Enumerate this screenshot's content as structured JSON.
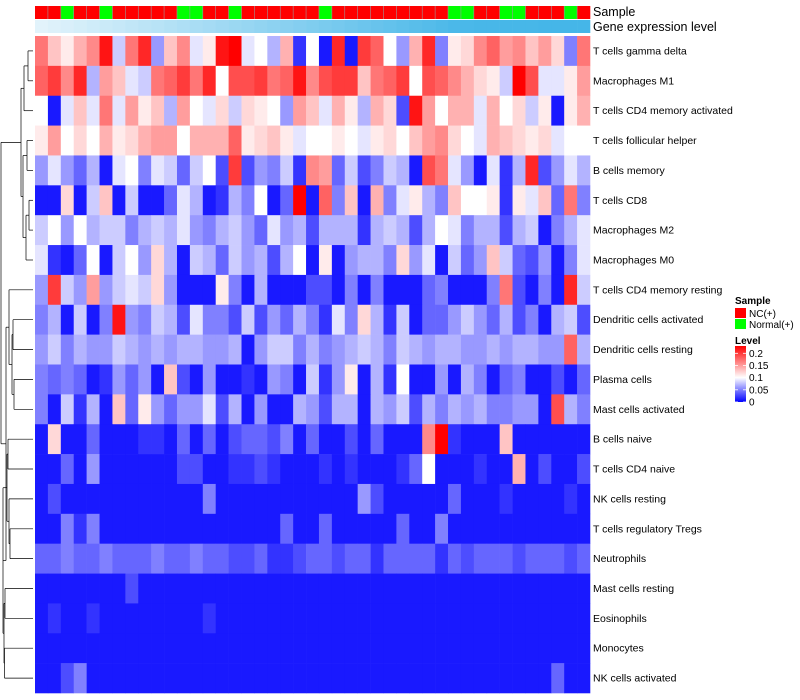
{
  "chart_data": {
    "type": "heatmap",
    "annotation_labels": {
      "sample": "Sample",
      "gene_expression": "Gene expression level"
    },
    "rows": [
      "T cells gamma delta",
      "Macrophages M1",
      "T cells CD4 memory activated",
      "T cells follicular helper",
      "B cells memory",
      "T cells CD8",
      "Macrophages M2",
      "Macrophages M0",
      "T cells CD4 memory resting",
      "Dendritic cells activated",
      "Dendritic cells resting",
      "Plasma cells",
      "Mast cells activated",
      "B cells naive",
      "T cells CD4 naive",
      "NK cells resting",
      "T cells regulatory  Tregs",
      "Neutrophils",
      "Mast cells resting",
      "Eosinophils",
      "Monocytes",
      "NK cells activated"
    ],
    "sample_groups": [
      "NC",
      "NC",
      "Normal",
      "NC",
      "NC",
      "Normal",
      "NC",
      "NC",
      "NC",
      "NC",
      "NC",
      "Normal",
      "Normal",
      "NC",
      "NC",
      "Normal",
      "NC",
      "NC",
      "NC",
      "NC",
      "NC",
      "NC",
      "Normal",
      "NC",
      "NC",
      "NC",
      "NC",
      "NC",
      "NC",
      "NC",
      "NC",
      "NC",
      "Normal",
      "Normal",
      "NC",
      "NC",
      "Normal",
      "Normal",
      "NC",
      "NC",
      "NC",
      "Normal",
      "NC"
    ],
    "gene_expression_gradient": [
      0.0,
      0.03,
      0.06,
      0.09,
      0.12,
      0.15,
      0.18,
      0.21,
      0.24,
      0.27,
      0.3,
      0.33,
      0.36,
      0.39,
      0.42,
      0.45,
      0.48,
      0.51,
      0.54,
      0.57,
      0.6,
      0.63,
      0.66,
      0.69,
      0.72,
      0.75,
      0.78,
      0.81,
      0.84,
      0.87,
      0.9,
      0.93,
      0.96,
      0.97,
      0.98,
      0.98,
      0.99,
      0.99,
      0.99,
      1.0,
      1.0,
      1.0,
      1.0
    ],
    "values": [
      [
        0.17,
        0.13,
        0.11,
        0.14,
        0.16,
        0.22,
        0.08,
        0.17,
        0.21,
        0.06,
        0.13,
        0.16,
        0.09,
        0.11,
        0.22,
        0.25,
        0.09,
        0.1,
        0.07,
        0.14,
        0.02,
        0.1,
        0.01,
        0.21,
        0.01,
        0.2,
        0.18,
        0.1,
        0.06,
        0.14,
        0.21,
        0.05,
        0.11,
        0.12,
        0.16,
        0.18,
        0.15,
        0.16,
        0.13,
        0.15,
        0.12,
        0.05,
        0.17
      ],
      [
        0.18,
        0.2,
        0.16,
        0.21,
        0.07,
        0.15,
        0.13,
        0.09,
        0.08,
        0.17,
        0.18,
        0.2,
        0.17,
        0.21,
        0.1,
        0.19,
        0.19,
        0.2,
        0.17,
        0.18,
        0.22,
        0.16,
        0.19,
        0.2,
        0.2,
        0.13,
        0.17,
        0.18,
        0.2,
        0.1,
        0.19,
        0.18,
        0.16,
        0.14,
        0.12,
        0.11,
        0.08,
        0.23,
        0.19,
        0.09,
        0.09,
        0.11,
        0.15
      ],
      [
        0.1,
        0.01,
        0.09,
        0.13,
        0.09,
        0.17,
        0.09,
        0.15,
        0.11,
        0.13,
        0.07,
        0.15,
        0.1,
        0.09,
        0.12,
        0.08,
        0.12,
        0.11,
        0.1,
        0.06,
        0.15,
        0.13,
        0.09,
        0.14,
        0.11,
        0.07,
        0.14,
        0.12,
        0.03,
        0.22,
        0.15,
        0.1,
        0.14,
        0.14,
        0.09,
        0.14,
        0.1,
        0.12,
        0.08,
        0.11,
        0.01,
        0.11,
        0.14
      ],
      [
        0.11,
        0.15,
        0.1,
        0.12,
        0.1,
        0.14,
        0.11,
        0.12,
        0.14,
        0.15,
        0.15,
        0.1,
        0.14,
        0.14,
        0.14,
        0.18,
        0.11,
        0.12,
        0.13,
        0.11,
        0.09,
        0.1,
        0.1,
        0.11,
        0.1,
        0.09,
        0.11,
        0.12,
        0.1,
        0.13,
        0.15,
        0.16,
        0.12,
        0.1,
        0.09,
        0.14,
        0.13,
        0.12,
        0.11,
        0.12,
        0.09,
        0.1,
        0.1
      ],
      [
        0.06,
        0.09,
        0.06,
        0.04,
        0.07,
        0.01,
        0.09,
        0.1,
        0.05,
        0.09,
        0.08,
        0.04,
        0.08,
        0.1,
        0.03,
        0.2,
        0.03,
        0.06,
        0.05,
        0.08,
        0.02,
        0.16,
        0.15,
        0.04,
        0.08,
        0.03,
        0.05,
        0.08,
        0.07,
        0.01,
        0.19,
        0.17,
        0.09,
        0.06,
        0.01,
        0.09,
        0.02,
        0.07,
        0.21,
        0.03,
        0.06,
        0.09,
        0.07
      ],
      [
        0.01,
        0.01,
        0.12,
        0.01,
        0.08,
        0.13,
        0.01,
        0.08,
        0.01,
        0.01,
        0.04,
        0.09,
        0.07,
        0.01,
        0.02,
        0.07,
        0.05,
        0.1,
        0.01,
        0.04,
        0.23,
        0.01,
        0.18,
        0.05,
        0.13,
        0.01,
        0.14,
        0.05,
        0.09,
        0.11,
        0.07,
        0.05,
        0.13,
        0.1,
        0.1,
        0.11,
        0.02,
        0.11,
        0.09,
        0.13,
        0.04,
        0.17,
        0.05
      ],
      [
        0.08,
        0.1,
        0.06,
        0.1,
        0.07,
        0.08,
        0.08,
        0.05,
        0.07,
        0.08,
        0.07,
        0.09,
        0.06,
        0.05,
        0.07,
        0.08,
        0.06,
        0.04,
        0.09,
        0.06,
        0.07,
        0.03,
        0.07,
        0.07,
        0.07,
        0.02,
        0.07,
        0.08,
        0.07,
        0.03,
        0.07,
        0.1,
        0.09,
        0.05,
        0.07,
        0.07,
        0.03,
        0.07,
        0.08,
        0.01,
        0.05,
        0.07,
        0.09
      ],
      [
        0.09,
        0.02,
        0.01,
        0.04,
        0.1,
        0.01,
        0.08,
        0.1,
        0.06,
        0.12,
        0.07,
        0.01,
        0.08,
        0.07,
        0.04,
        0.08,
        0.06,
        0.07,
        0.03,
        0.07,
        0.1,
        0.01,
        0.11,
        0.01,
        0.06,
        0.07,
        0.07,
        0.05,
        0.12,
        0.06,
        0.09,
        0.01,
        0.08,
        0.04,
        0.06,
        0.13,
        0.08,
        0.04,
        0.03,
        0.06,
        0.01,
        0.05,
        0.09
      ],
      [
        0.06,
        0.2,
        0.08,
        0.06,
        0.15,
        0.06,
        0.08,
        0.09,
        0.08,
        0.12,
        0.06,
        0.01,
        0.01,
        0.01,
        0.11,
        0.05,
        0.01,
        0.07,
        0.01,
        0.01,
        0.01,
        0.03,
        0.03,
        0.01,
        0.05,
        0.01,
        0.05,
        0.01,
        0.01,
        0.01,
        0.04,
        0.05,
        0.01,
        0.01,
        0.01,
        0.05,
        0.17,
        0.03,
        0.01,
        0.05,
        0.01,
        0.21,
        0.08
      ],
      [
        0.05,
        0.07,
        0.01,
        0.08,
        0.01,
        0.05,
        0.22,
        0.06,
        0.05,
        0.08,
        0.07,
        0.03,
        0.09,
        0.05,
        0.05,
        0.03,
        0.08,
        0.03,
        0.06,
        0.04,
        0.07,
        0.05,
        0.02,
        0.09,
        0.05,
        0.12,
        0.07,
        0.02,
        0.08,
        0.01,
        0.04,
        0.04,
        0.06,
        0.08,
        0.06,
        0.04,
        0.07,
        0.03,
        0.05,
        0.01,
        0.07,
        0.08,
        0.03
      ],
      [
        0.06,
        0.08,
        0.05,
        0.07,
        0.06,
        0.06,
        0.08,
        0.07,
        0.06,
        0.07,
        0.06,
        0.07,
        0.07,
        0.06,
        0.06,
        0.07,
        0.01,
        0.06,
        0.08,
        0.08,
        0.05,
        0.07,
        0.05,
        0.06,
        0.07,
        0.08,
        0.07,
        0.05,
        0.08,
        0.07,
        0.06,
        0.07,
        0.07,
        0.06,
        0.06,
        0.07,
        0.06,
        0.07,
        0.07,
        0.06,
        0.06,
        0.18,
        0.07
      ],
      [
        0.05,
        0.04,
        0.05,
        0.04,
        0.01,
        0.02,
        0.06,
        0.04,
        0.06,
        0.01,
        0.13,
        0.03,
        0.01,
        0.06,
        0.01,
        0.01,
        0.02,
        0.01,
        0.06,
        0.05,
        0.01,
        0.08,
        0.02,
        0.06,
        0.11,
        0.01,
        0.07,
        0.02,
        0.1,
        0.01,
        0.01,
        0.06,
        0.01,
        0.07,
        0.05,
        0.01,
        0.04,
        0.05,
        0.01,
        0.01,
        0.03,
        0.01,
        0.04
      ],
      [
        0.05,
        0.01,
        0.08,
        0.02,
        0.07,
        0.01,
        0.13,
        0.04,
        0.11,
        0.06,
        0.04,
        0.06,
        0.06,
        0.09,
        0.03,
        0.07,
        0.01,
        0.06,
        0.01,
        0.01,
        0.07,
        0.06,
        0.03,
        0.07,
        0.07,
        0.01,
        0.07,
        0.06,
        0.08,
        0.03,
        0.07,
        0.05,
        0.07,
        0.06,
        0.07,
        0.05,
        0.05,
        0.06,
        0.06,
        0.01,
        0.19,
        0.07,
        0.05
      ],
      [
        0.01,
        0.12,
        0.01,
        0.01,
        0.04,
        0.01,
        0.01,
        0.01,
        0.02,
        0.02,
        0.01,
        0.04,
        0.01,
        0.04,
        0.01,
        0.03,
        0.04,
        0.04,
        0.03,
        0.05,
        0.01,
        0.04,
        0.01,
        0.01,
        0.03,
        0.01,
        0.04,
        0.01,
        0.01,
        0.01,
        0.16,
        0.23,
        0.02,
        0.01,
        0.01,
        0.01,
        0.13,
        0.01,
        0.01,
        0.01,
        0.01,
        0.01,
        0.01
      ],
      [
        0.01,
        0.01,
        0.04,
        0.01,
        0.06,
        0.01,
        0.01,
        0.01,
        0.01,
        0.01,
        0.01,
        0.03,
        0.03,
        0.01,
        0.01,
        0.02,
        0.02,
        0.03,
        0.02,
        0.01,
        0.01,
        0.01,
        0.02,
        0.01,
        0.02,
        0.01,
        0.01,
        0.01,
        0.02,
        0.04,
        0.1,
        0.01,
        0.01,
        0.01,
        0.02,
        0.01,
        0.01,
        0.14,
        0.01,
        0.03,
        0.01,
        0.01,
        0.03
      ],
      [
        0.01,
        0.03,
        0.01,
        0.01,
        0.01,
        0.01,
        0.01,
        0.01,
        0.01,
        0.01,
        0.01,
        0.01,
        0.01,
        0.05,
        0.01,
        0.01,
        0.01,
        0.01,
        0.01,
        0.01,
        0.01,
        0.01,
        0.01,
        0.01,
        0.01,
        0.06,
        0.03,
        0.01,
        0.01,
        0.01,
        0.01,
        0.01,
        0.04,
        0.01,
        0.01,
        0.01,
        0.02,
        0.01,
        0.01,
        0.01,
        0.01,
        0.02,
        0.01
      ],
      [
        0.01,
        0.01,
        0.05,
        0.02,
        0.05,
        0.01,
        0.01,
        0.01,
        0.01,
        0.01,
        0.01,
        0.01,
        0.01,
        0.01,
        0.01,
        0.01,
        0.01,
        0.01,
        0.01,
        0.04,
        0.01,
        0.01,
        0.04,
        0.01,
        0.01,
        0.01,
        0.01,
        0.01,
        0.04,
        0.01,
        0.01,
        0.05,
        0.01,
        0.01,
        0.01,
        0.01,
        0.01,
        0.01,
        0.01,
        0.01,
        0.01,
        0.01,
        0.01
      ],
      [
        0.04,
        0.04,
        0.05,
        0.04,
        0.04,
        0.05,
        0.04,
        0.04,
        0.04,
        0.05,
        0.04,
        0.04,
        0.05,
        0.04,
        0.04,
        0.03,
        0.03,
        0.04,
        0.02,
        0.02,
        0.03,
        0.04,
        0.04,
        0.03,
        0.04,
        0.04,
        0.02,
        0.04,
        0.04,
        0.04,
        0.04,
        0.02,
        0.04,
        0.03,
        0.04,
        0.04,
        0.04,
        0.03,
        0.04,
        0.04,
        0.04,
        0.03,
        0.04
      ],
      [
        0.01,
        0.01,
        0.01,
        0.01,
        0.01,
        0.01,
        0.01,
        0.03,
        0.01,
        0.01,
        0.01,
        0.01,
        0.01,
        0.01,
        0.01,
        0.01,
        0.01,
        0.01,
        0.01,
        0.01,
        0.01,
        0.01,
        0.01,
        0.01,
        0.01,
        0.01,
        0.01,
        0.01,
        0.01,
        0.01,
        0.01,
        0.01,
        0.01,
        0.01,
        0.01,
        0.01,
        0.01,
        0.01,
        0.01,
        0.01,
        0.01,
        0.01,
        0.01
      ],
      [
        0.01,
        0.02,
        0.01,
        0.01,
        0.02,
        0.01,
        0.01,
        0.01,
        0.01,
        0.01,
        0.01,
        0.01,
        0.01,
        0.02,
        0.01,
        0.01,
        0.01,
        0.01,
        0.01,
        0.01,
        0.01,
        0.01,
        0.01,
        0.01,
        0.01,
        0.01,
        0.01,
        0.01,
        0.01,
        0.01,
        0.01,
        0.01,
        0.01,
        0.01,
        0.01,
        0.01,
        0.01,
        0.01,
        0.01,
        0.01,
        0.01,
        0.01,
        0.01
      ],
      [
        0.01,
        0.01,
        0.01,
        0.01,
        0.01,
        0.01,
        0.01,
        0.01,
        0.01,
        0.01,
        0.01,
        0.01,
        0.01,
        0.01,
        0.01,
        0.01,
        0.01,
        0.01,
        0.01,
        0.01,
        0.01,
        0.01,
        0.01,
        0.01,
        0.01,
        0.01,
        0.01,
        0.01,
        0.01,
        0.01,
        0.01,
        0.01,
        0.01,
        0.01,
        0.01,
        0.01,
        0.01,
        0.01,
        0.01,
        0.01,
        0.01,
        0.01,
        0.01
      ],
      [
        0.01,
        0.01,
        0.03,
        0.05,
        0.01,
        0.01,
        0.01,
        0.01,
        0.01,
        0.01,
        0.01,
        0.01,
        0.01,
        0.01,
        0.01,
        0.01,
        0.01,
        0.01,
        0.01,
        0.01,
        0.01,
        0.01,
        0.01,
        0.01,
        0.01,
        0.01,
        0.01,
        0.01,
        0.01,
        0.01,
        0.01,
        0.01,
        0.01,
        0.01,
        0.01,
        0.01,
        0.01,
        0.01,
        0.01,
        0.01,
        0.04,
        0.01,
        0.01
      ]
    ],
    "legend": {
      "sample_title": "Sample",
      "sample_entries": [
        {
          "key": "NC",
          "label": "NC(+)",
          "color": "#ff0000"
        },
        {
          "key": "Normal",
          "label": "Normal(+)",
          "color": "#00ff00"
        }
      ],
      "level_title": "Level",
      "level_ticks": [
        "0.2",
        "0.15",
        "0.1",
        "0.05",
        "0"
      ],
      "level_tick_values": [
        0.2,
        0.15,
        0.1,
        0.05,
        0
      ],
      "level_range": [
        0,
        0.23
      ]
    },
    "colors": {
      "low": "#0000ff",
      "mid": "#ffffff",
      "high": "#ff0000",
      "gene_light": "#e2f3fb",
      "gene_dark": "#45b6e8",
      "dendrogram": "#000000"
    }
  }
}
